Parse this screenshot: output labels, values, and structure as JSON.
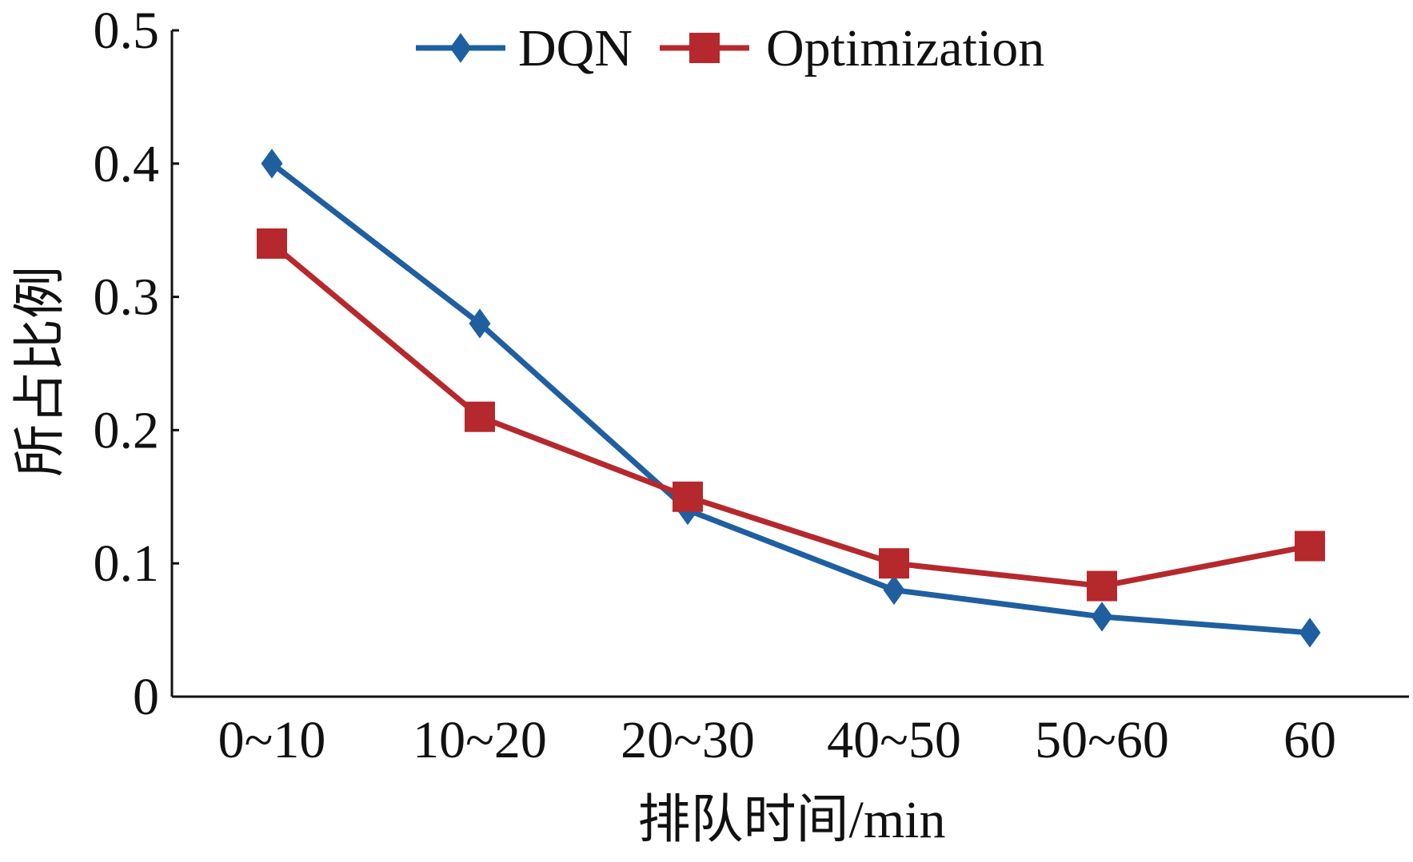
{
  "chart_data": {
    "type": "line",
    "title": "",
    "xlabel": "排队时间/min",
    "ylabel": "所占比例",
    "categories": [
      "0~10",
      "10~20",
      "20~30",
      "40~50",
      "50~60",
      "60"
    ],
    "ylim": [
      0,
      0.5
    ],
    "yticks": [
      0,
      0.1,
      0.2,
      0.3,
      0.4,
      0.5
    ],
    "ytick_labels": [
      "0",
      "0.1",
      "0.2",
      "0.3",
      "0.4",
      "0.5"
    ],
    "grid": false,
    "legend_position": "top-center",
    "series": [
      {
        "name": "DQN",
        "values": [
          0.4,
          0.28,
          0.14,
          0.08,
          0.06,
          0.048
        ],
        "color": "#1f5fa0",
        "marker": "diamond"
      },
      {
        "name": "Optimization",
        "values": [
          0.34,
          0.21,
          0.15,
          0.1,
          0.083,
          0.113
        ],
        "color": "#b5292d",
        "marker": "square"
      }
    ]
  }
}
